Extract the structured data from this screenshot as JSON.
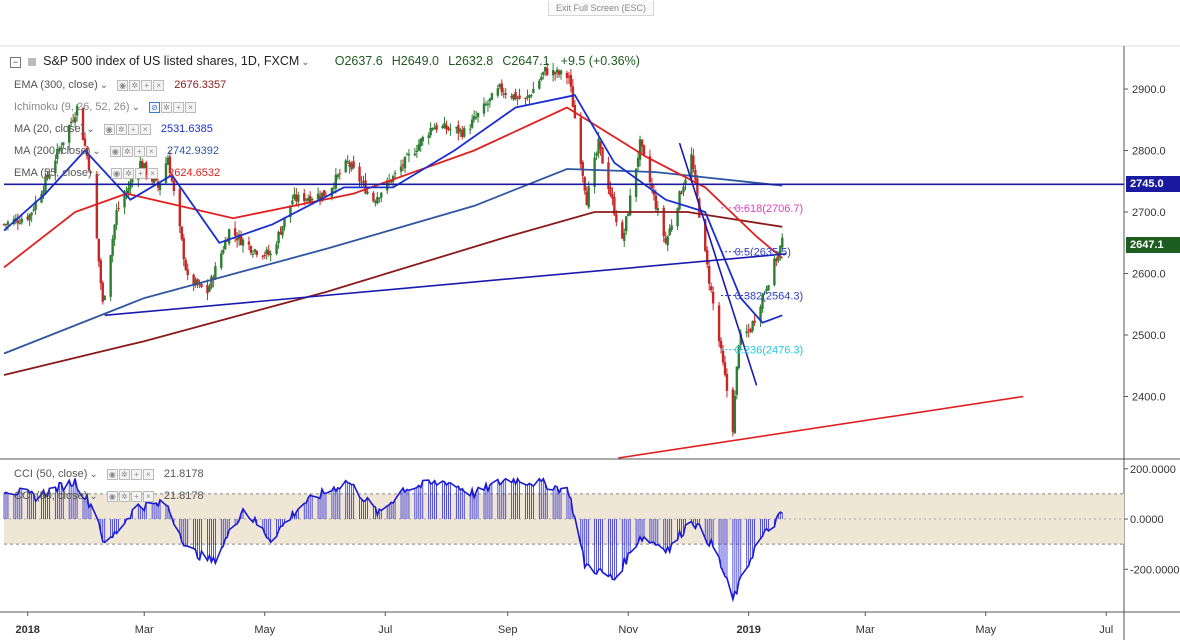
{
  "window": {
    "exit_fullscreen_label": "Exit Full Screen (ESC)"
  },
  "header": {
    "title": "S&P 500 index of US listed shares, 1D, FXCM",
    "open": "O2637.6",
    "high": "H2649.0",
    "low": "L2632.8",
    "close": "C2647.1",
    "change": "+9.5 (+0.36%)"
  },
  "indicators": [
    {
      "label": "EMA (300, close)",
      "value": "2676.3357",
      "color": "#8b1a1a"
    },
    {
      "label": "Ichimoku (9, 26, 52, 26)",
      "value": "",
      "color": "#888888"
    },
    {
      "label": "MA (20, close)",
      "value": "2531.6385",
      "color": "#1a2fd0"
    },
    {
      "label": "MA (200, close)",
      "value": "2742.9392",
      "color": "#2f56a0"
    },
    {
      "label": "EMA (55, close)",
      "value": "2624.6532",
      "color": "#e02020"
    }
  ],
  "cci_labels": [
    {
      "label": "CCI (50, close)",
      "value": "21.8178"
    },
    {
      "label": "CCI (50, close)",
      "value": "21.8178"
    }
  ],
  "colors": {
    "up_candle": "#2e7d32",
    "down_candle": "#c62828",
    "price_tag_level": "#1a1aa0",
    "price_tag_last": "#1b5e20",
    "fib_618": "#e040c0",
    "fib_5": "#3040c0",
    "fib_382": "#3040c0",
    "fib_236": "#20c8e0",
    "cci_band": "#efe6d6",
    "cci_line": "#1a1ad0"
  },
  "chart_data": {
    "type": "candlestick",
    "title": "S&P 500 index of US listed shares, 1D, FXCM",
    "x_tick_labels": [
      "2018",
      "Mar",
      "May",
      "Jul",
      "Sep",
      "Nov",
      "2019",
      "Mar",
      "May",
      "Jul"
    ],
    "y_ticks": [
      2400,
      2500,
      2600,
      2700,
      2800,
      2900
    ],
    "y_tick_labels": [
      "2400.0",
      "2500.0",
      "2600.0",
      "2700.0",
      "2800.0",
      "2900.0"
    ],
    "ylim": [
      2300,
      2970
    ],
    "x_range_dates": [
      "2017-12-20",
      "2019-07-10"
    ],
    "price_key": [
      [
        "2017-12-20",
        2680
      ],
      [
        "2018-01-02",
        2695
      ],
      [
        "2018-01-10",
        2750
      ],
      [
        "2018-01-26",
        2870
      ],
      [
        "2018-02-02",
        2760
      ],
      [
        "2018-02-08",
        2550
      ],
      [
        "2018-02-15",
        2700
      ],
      [
        "2018-02-27",
        2780
      ],
      [
        "2018-03-08",
        2740
      ],
      [
        "2018-03-13",
        2790
      ],
      [
        "2018-03-23",
        2590
      ],
      [
        "2018-04-02",
        2570
      ],
      [
        "2018-04-13",
        2670
      ],
      [
        "2018-04-25",
        2640
      ],
      [
        "2018-05-04",
        2630
      ],
      [
        "2018-05-15",
        2720
      ],
      [
        "2018-06-01",
        2730
      ],
      [
        "2018-06-12",
        2780
      ],
      [
        "2018-06-25",
        2720
      ],
      [
        "2018-07-06",
        2760
      ],
      [
        "2018-07-25",
        2840
      ],
      [
        "2018-08-10",
        2830
      ],
      [
        "2018-08-28",
        2900
      ],
      [
        "2018-09-10",
        2880
      ],
      [
        "2018-09-20",
        2930
      ],
      [
        "2018-10-02",
        2920
      ],
      [
        "2018-10-11",
        2720
      ],
      [
        "2018-10-17",
        2810
      ],
      [
        "2018-10-29",
        2650
      ],
      [
        "2018-11-07",
        2810
      ],
      [
        "2018-11-20",
        2650
      ],
      [
        "2018-12-03",
        2790
      ],
      [
        "2018-12-10",
        2630
      ],
      [
        "2018-12-24",
        2350
      ],
      [
        "2018-12-27",
        2490
      ],
      [
        "2019-01-02",
        2510
      ],
      [
        "2019-01-11",
        2590
      ],
      [
        "2019-01-18",
        2650
      ]
    ],
    "last_price_label": "2647.1",
    "level_label": "2745.0",
    "horizontal_level": 2745,
    "series_key": [
      {
        "name": "EMA (300, close)",
        "points": [
          [
            "2017-12-20",
            2435
          ],
          [
            "2018-03-01",
            2490
          ],
          [
            "2018-06-01",
            2570
          ],
          [
            "2018-09-01",
            2660
          ],
          [
            "2018-10-15",
            2700
          ],
          [
            "2018-12-01",
            2700
          ],
          [
            "2019-01-18",
            2676
          ]
        ]
      },
      {
        "name": "MA (200, close)",
        "points": [
          [
            "2017-12-20",
            2470
          ],
          [
            "2018-03-01",
            2560
          ],
          [
            "2018-06-01",
            2640
          ],
          [
            "2018-08-15",
            2710
          ],
          [
            "2018-10-01",
            2770
          ],
          [
            "2018-11-15",
            2765
          ],
          [
            "2019-01-18",
            2743
          ]
        ]
      },
      {
        "name": "EMA (55, close)",
        "points": [
          [
            "2017-12-20",
            2610
          ],
          [
            "2018-01-25",
            2700
          ],
          [
            "2018-02-20",
            2730
          ],
          [
            "2018-04-15",
            2690
          ],
          [
            "2018-06-15",
            2730
          ],
          [
            "2018-08-15",
            2800
          ],
          [
            "2018-10-01",
            2870
          ],
          [
            "2018-11-10",
            2790
          ],
          [
            "2018-12-10",
            2740
          ],
          [
            "2019-01-05",
            2660
          ],
          [
            "2019-01-18",
            2625
          ]
        ]
      },
      {
        "name": "MA (20, close)",
        "points": [
          [
            "2017-12-20",
            2670
          ],
          [
            "2018-01-10",
            2730
          ],
          [
            "2018-01-30",
            2800
          ],
          [
            "2018-02-22",
            2720
          ],
          [
            "2018-03-15",
            2760
          ],
          [
            "2018-04-08",
            2650
          ],
          [
            "2018-05-05",
            2680
          ],
          [
            "2018-06-10",
            2740
          ],
          [
            "2018-07-05",
            2740
          ],
          [
            "2018-08-05",
            2800
          ],
          [
            "2018-09-05",
            2870
          ],
          [
            "2018-10-05",
            2890
          ],
          [
            "2018-10-25",
            2780
          ],
          [
            "2018-11-20",
            2720
          ],
          [
            "2018-12-10",
            2700
          ],
          [
            "2018-12-28",
            2560
          ],
          [
            "2019-01-08",
            2520
          ],
          [
            "2019-01-18",
            2532
          ]
        ]
      }
    ],
    "trendlines": [
      {
        "from": [
          "2018-02-09",
          2532
        ],
        "to": [
          "2019-01-20",
          2632
        ],
        "color": "#1a1ab0"
      },
      {
        "from": [
          "2018-11-27",
          2812
        ],
        "to": [
          "2019-01-05",
          2418
        ],
        "color": "#1a1ab0"
      },
      {
        "from": [
          "2018-10-27",
          2300
        ],
        "to": [
          "2019-05-20",
          2400
        ],
        "color": "#e02020"
      }
    ],
    "fibonacci": [
      {
        "label": "0.618(2706.7)",
        "value": 2706.7
      },
      {
        "label": "0.5(2635.5)",
        "value": 2635.5
      },
      {
        "label": "0.382(2564.3)",
        "value": 2564.3
      },
      {
        "label": "0.236(2476.3)",
        "value": 2476.3
      }
    ],
    "cci": {
      "name": "CCI (50, close)",
      "value": 21.8178,
      "y_ticks": [
        200,
        0,
        -200
      ],
      "y_tick_labels": [
        "200.0000",
        "0.0000",
        "-200.0000"
      ],
      "band": [
        -100,
        100
      ],
      "points": [
        [
          "2017-12-20",
          120
        ],
        [
          "2018-01-05",
          90
        ],
        [
          "2018-01-25",
          150
        ],
        [
          "2018-02-05",
          20
        ],
        [
          "2018-02-09",
          -110
        ],
        [
          "2018-02-25",
          50
        ],
        [
          "2018-03-12",
          60
        ],
        [
          "2018-03-23",
          -120
        ],
        [
          "2018-04-05",
          -170
        ],
        [
          "2018-04-20",
          40
        ],
        [
          "2018-05-04",
          -80
        ],
        [
          "2018-05-20",
          60
        ],
        [
          "2018-06-12",
          150
        ],
        [
          "2018-06-28",
          20
        ],
        [
          "2018-07-10",
          120
        ],
        [
          "2018-08-01",
          150
        ],
        [
          "2018-08-15",
          100
        ],
        [
          "2018-09-01",
          160
        ],
        [
          "2018-09-20",
          140
        ],
        [
          "2018-10-02",
          110
        ],
        [
          "2018-10-10",
          -180
        ],
        [
          "2018-10-25",
          -240
        ],
        [
          "2018-11-07",
          -70
        ],
        [
          "2018-11-22",
          -120
        ],
        [
          "2018-12-03",
          0
        ],
        [
          "2018-12-15",
          -120
        ],
        [
          "2018-12-24",
          -320
        ],
        [
          "2019-01-05",
          -100
        ],
        [
          "2019-01-18",
          22
        ]
      ]
    }
  }
}
